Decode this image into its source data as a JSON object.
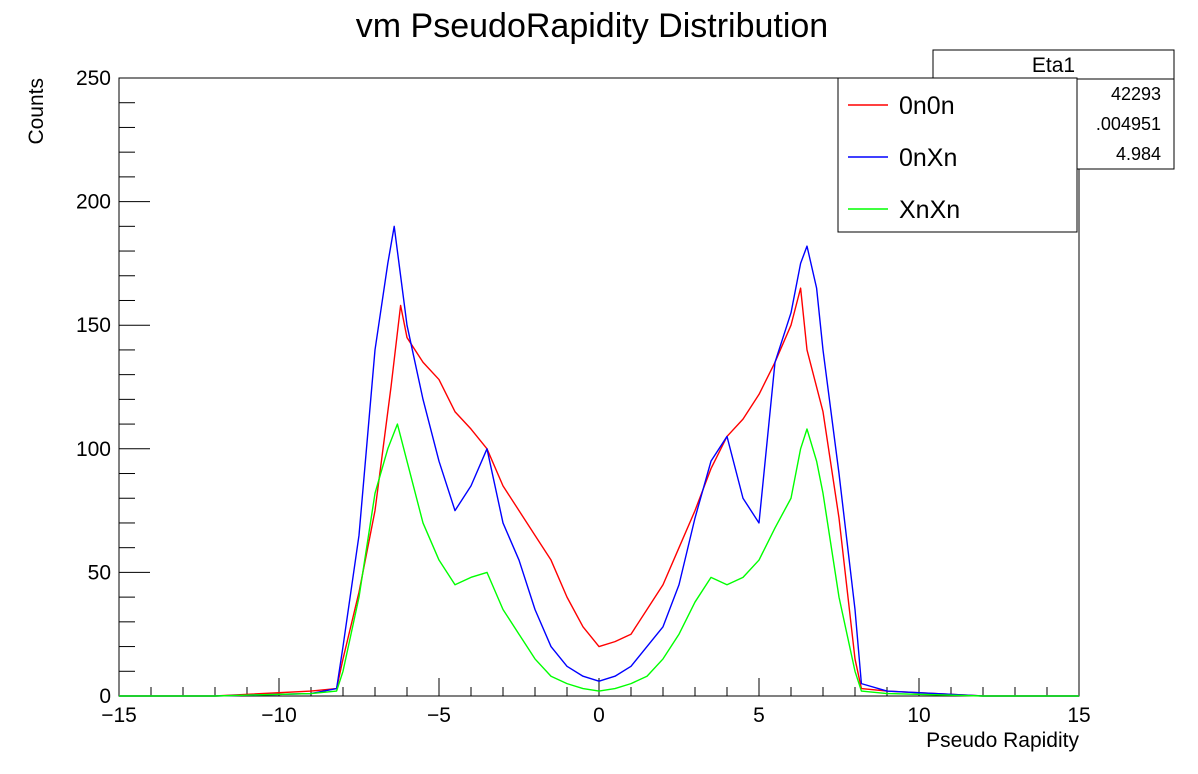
{
  "chart_data": {
    "type": "line",
    "title": "vm PseudoRapidity Distribution",
    "xlabel": "Pseudo Rapidity",
    "ylabel": "Counts",
    "xlim": [
      -15,
      15
    ],
    "ylim": [
      0,
      250
    ],
    "x_ticks": [
      "−15",
      "−10",
      "−5",
      "0",
      "5",
      "10",
      "15"
    ],
    "y_ticks": [
      "0",
      "50",
      "100",
      "150",
      "200",
      "250"
    ],
    "legend_position": "top-right",
    "grid": false,
    "stats_box": {
      "title": "Eta1",
      "values": [
        "42293",
        ".004951",
        "4.984"
      ]
    },
    "series": [
      {
        "name": "0n0n",
        "color": "#ff0000",
        "points": [
          [
            -15,
            0
          ],
          [
            -12,
            0
          ],
          [
            -9,
            2
          ],
          [
            -8.2,
            3
          ],
          [
            -8.0,
            15
          ],
          [
            -7.5,
            42
          ],
          [
            -7.0,
            75
          ],
          [
            -6.5,
            125
          ],
          [
            -6.2,
            158
          ],
          [
            -6.0,
            145
          ],
          [
            -5.5,
            135
          ],
          [
            -5.0,
            128
          ],
          [
            -4.5,
            115
          ],
          [
            -4.0,
            108
          ],
          [
            -3.5,
            100
          ],
          [
            -3.0,
            85
          ],
          [
            -2.5,
            75
          ],
          [
            -2.0,
            65
          ],
          [
            -1.5,
            55
          ],
          [
            -1.0,
            40
          ],
          [
            -0.5,
            28
          ],
          [
            0.0,
            20
          ],
          [
            0.5,
            22
          ],
          [
            1.0,
            25
          ],
          [
            1.5,
            35
          ],
          [
            2.0,
            45
          ],
          [
            2.5,
            60
          ],
          [
            3.0,
            75
          ],
          [
            3.5,
            92
          ],
          [
            4.0,
            105
          ],
          [
            4.5,
            112
          ],
          [
            5.0,
            122
          ],
          [
            5.5,
            135
          ],
          [
            6.0,
            150
          ],
          [
            6.3,
            165
          ],
          [
            6.5,
            140
          ],
          [
            7.0,
            115
          ],
          [
            7.5,
            72
          ],
          [
            8.0,
            15
          ],
          [
            8.2,
            3
          ],
          [
            9,
            2
          ],
          [
            12,
            0
          ],
          [
            15,
            0
          ]
        ]
      },
      {
        "name": "0nXn",
        "color": "#0000ff",
        "points": [
          [
            -15,
            0
          ],
          [
            -12,
            0
          ],
          [
            -9,
            1
          ],
          [
            -8.2,
            3
          ],
          [
            -8.0,
            20
          ],
          [
            -7.5,
            65
          ],
          [
            -7.0,
            140
          ],
          [
            -6.6,
            175
          ],
          [
            -6.4,
            190
          ],
          [
            -6.2,
            170
          ],
          [
            -6.0,
            150
          ],
          [
            -5.5,
            120
          ],
          [
            -5.0,
            95
          ],
          [
            -4.5,
            75
          ],
          [
            -4.0,
            85
          ],
          [
            -3.5,
            100
          ],
          [
            -3.0,
            70
          ],
          [
            -2.5,
            55
          ],
          [
            -2.0,
            35
          ],
          [
            -1.5,
            20
          ],
          [
            -1.0,
            12
          ],
          [
            -0.5,
            8
          ],
          [
            0.0,
            6
          ],
          [
            0.5,
            8
          ],
          [
            1.0,
            12
          ],
          [
            1.5,
            20
          ],
          [
            2.0,
            28
          ],
          [
            2.5,
            45
          ],
          [
            3.0,
            72
          ],
          [
            3.5,
            95
          ],
          [
            4.0,
            105
          ],
          [
            4.5,
            80
          ],
          [
            5.0,
            70
          ],
          [
            5.5,
            135
          ],
          [
            6.0,
            155
          ],
          [
            6.3,
            175
          ],
          [
            6.5,
            182
          ],
          [
            6.8,
            165
          ],
          [
            7.0,
            140
          ],
          [
            7.5,
            90
          ],
          [
            8.0,
            35
          ],
          [
            8.2,
            5
          ],
          [
            9,
            2
          ],
          [
            12,
            0
          ],
          [
            15,
            0
          ]
        ]
      },
      {
        "name": "XnXn",
        "color": "#00ff00",
        "points": [
          [
            -15,
            0
          ],
          [
            -12,
            0
          ],
          [
            -9,
            1
          ],
          [
            -8.2,
            2
          ],
          [
            -8.0,
            10
          ],
          [
            -7.5,
            40
          ],
          [
            -7.0,
            82
          ],
          [
            -6.6,
            100
          ],
          [
            -6.3,
            110
          ],
          [
            -6.0,
            95
          ],
          [
            -5.5,
            70
          ],
          [
            -5.0,
            55
          ],
          [
            -4.5,
            45
          ],
          [
            -4.0,
            48
          ],
          [
            -3.5,
            50
          ],
          [
            -3.0,
            35
          ],
          [
            -2.5,
            25
          ],
          [
            -2.0,
            15
          ],
          [
            -1.5,
            8
          ],
          [
            -1.0,
            5
          ],
          [
            -0.5,
            3
          ],
          [
            0.0,
            2
          ],
          [
            0.5,
            3
          ],
          [
            1.0,
            5
          ],
          [
            1.5,
            8
          ],
          [
            2.0,
            15
          ],
          [
            2.5,
            25
          ],
          [
            3.0,
            38
          ],
          [
            3.5,
            48
          ],
          [
            4.0,
            45
          ],
          [
            4.5,
            48
          ],
          [
            5.0,
            55
          ],
          [
            5.5,
            68
          ],
          [
            6.0,
            80
          ],
          [
            6.3,
            100
          ],
          [
            6.5,
            108
          ],
          [
            6.8,
            95
          ],
          [
            7.0,
            82
          ],
          [
            7.5,
            40
          ],
          [
            8.0,
            10
          ],
          [
            8.2,
            2
          ],
          [
            9,
            1
          ],
          [
            12,
            0
          ],
          [
            15,
            0
          ]
        ]
      }
    ]
  }
}
